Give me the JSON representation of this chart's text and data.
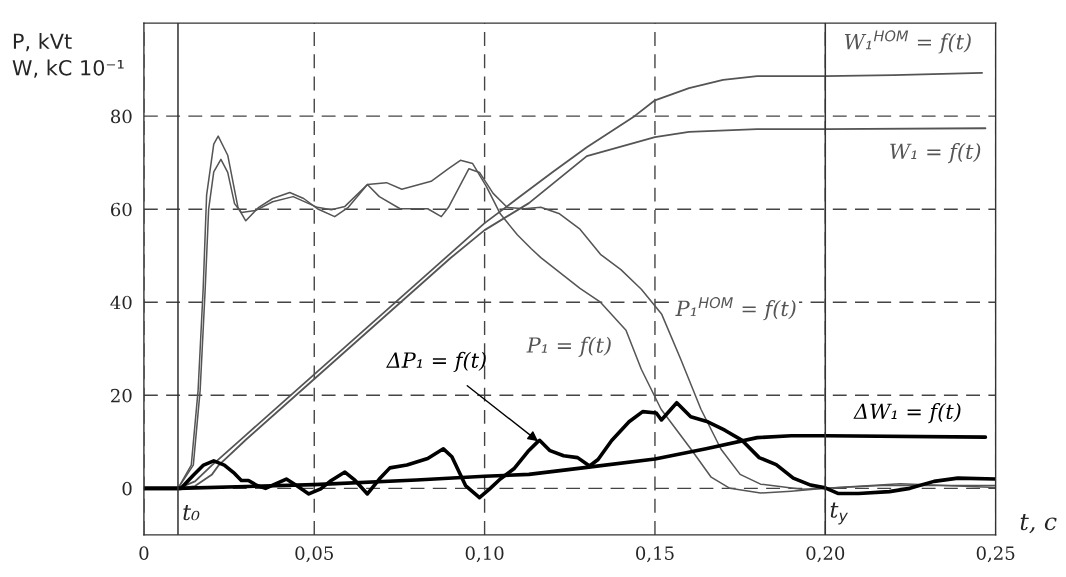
{
  "chart_data": {
    "type": "line",
    "ylabel": "P, kVt\nW, kC 10⁻¹",
    "xlabel": "t, c",
    "xlim": [
      0,
      0.25
    ],
    "ylim": [
      -10,
      100
    ],
    "xticks": [
      {
        "value": 0,
        "label": "0"
      },
      {
        "value": 0.05,
        "label": "0,05"
      },
      {
        "value": 0.1,
        "label": "0,10"
      },
      {
        "value": 0.15,
        "label": "0,15"
      },
      {
        "value": 0.2,
        "label": "0,20"
      },
      {
        "value": 0.25,
        "label": "0,25"
      }
    ],
    "yticks": [
      0,
      20,
      40,
      60,
      80
    ],
    "grid": true,
    "line_style": "solid",
    "marker": "none",
    "ref_lines": [
      {
        "axis": "x",
        "value": 0.01,
        "label": "t₀",
        "color": "#333333",
        "line_style": "solid"
      },
      {
        "axis": "x",
        "value": 0.2,
        "label": "t$_{y}$",
        "color": "#333333",
        "line_style": "solid"
      }
    ],
    "series": [
      {
        "name": "W₁$^{HOM}$ = f(t)",
        "color": "#555555",
        "x": [
          0,
          0.01,
          0.015,
          0.02,
          0.03,
          0.04,
          0.05,
          0.06,
          0.07,
          0.08,
          0.09,
          0.1,
          0.11,
          0.12,
          0.13,
          0.144,
          0.15,
          0.16,
          0.17,
          0.18,
          0.2,
          0.22,
          0.246
        ],
        "values": [
          0,
          0,
          1.5,
          5,
          11.5,
          18,
          24.5,
          31,
          37.5,
          44,
          50.5,
          57,
          62.5,
          68,
          73.3,
          80,
          83.4,
          86,
          87.8,
          88.6,
          88.6,
          88.8,
          89.3
        ]
      },
      {
        "name": "W₁ = f(t)",
        "color": "#555555",
        "x": [
          0.01,
          0.015,
          0.02,
          0.022,
          0.03,
          0.05,
          0.07,
          0.09,
          0.1,
          0.113,
          0.13,
          0.15,
          0.16,
          0.18,
          0.2,
          0.247
        ],
        "values": [
          0,
          0.5,
          3,
          5,
          10.5,
          23.5,
          36.5,
          49.5,
          55.5,
          61.3,
          71.4,
          75.5,
          76.6,
          77.2,
          77.2,
          77.4
        ]
      },
      {
        "name": "P₁$^{HOM}$ = f(t)",
        "color": "#555555",
        "x": [
          0,
          0.01,
          0.0145,
          0.0165,
          0.018,
          0.019,
          0.0205,
          0.0226,
          0.0246,
          0.0266,
          0.0286,
          0.0327,
          0.0378,
          0.0438,
          0.0509,
          0.055,
          0.059,
          0.0656,
          0.0691,
          0.0752,
          0.0833,
          0.0873,
          0.0894,
          0.0954,
          0.0985,
          0.1025,
          0.1066,
          0.1116,
          0.1165,
          0.122,
          0.128,
          0.134,
          0.14,
          0.146,
          0.152,
          0.1576,
          0.1635,
          0.1694,
          0.175,
          0.181,
          0.193,
          0.2,
          0.2165,
          0.25
        ],
        "values": [
          0,
          0,
          5,
          21,
          43,
          60,
          68,
          70.7,
          67.9,
          61.2,
          59.3,
          59.7,
          61.6,
          62.7,
          60.4,
          59.9,
          60.6,
          65.3,
          62.7,
          60.1,
          60.1,
          58.4,
          60.4,
          68.7,
          67.9,
          63.4,
          60.4,
          60.1,
          60.4,
          59,
          55.7,
          50.3,
          47,
          42.8,
          37.4,
          27.7,
          17,
          8.4,
          3,
          0.9,
          -0.2,
          0,
          0.6,
          0.6
        ]
      },
      {
        "name": "P₁ = f(t)",
        "color": "#555555",
        "x": [
          0.01,
          0.0139,
          0.0159,
          0.0174,
          0.0184,
          0.0205,
          0.0218,
          0.0246,
          0.0276,
          0.0299,
          0.0337,
          0.0378,
          0.0428,
          0.0469,
          0.0509,
          0.056,
          0.06,
          0.0656,
          0.0712,
          0.0757,
          0.0843,
          0.0894,
          0.0929,
          0.0965,
          0.1005,
          0.1046,
          0.1096,
          0.1137,
          0.1165,
          0.128,
          0.134,
          0.1415,
          0.146,
          0.1518,
          0.1606,
          0.1665,
          0.172,
          0.181,
          0.19,
          0.2,
          0.222,
          0.25
        ],
        "values": [
          0,
          5,
          21,
          43,
          63,
          74,
          75.7,
          71.6,
          60.4,
          57.5,
          60.4,
          62.3,
          63.6,
          62.3,
          60.1,
          58.4,
          60.4,
          65.3,
          65.7,
          64.3,
          66,
          68.7,
          70.5,
          69.8,
          64.9,
          59,
          54.5,
          51.5,
          49.6,
          43,
          40,
          34,
          25.6,
          17,
          8.4,
          2.4,
          0,
          -1,
          -0.6,
          0,
          1,
          0.2
        ]
      },
      {
        "name": "ΔP₁ = f(t)",
        "color": "#000000",
        "x": [
          0,
          0.0109,
          0.0145,
          0.0175,
          0.0205,
          0.0236,
          0.0266,
          0.0286,
          0.0307,
          0.0332,
          0.0357,
          0.0388,
          0.0418,
          0.0448,
          0.0484,
          0.0519,
          0.055,
          0.059,
          0.062,
          0.0656,
          0.0691,
          0.0722,
          0.0772,
          0.0833,
          0.0879,
          0.0904,
          0.0944,
          0.0985,
          0.1015,
          0.1046,
          0.1086,
          0.1127,
          0.1157,
          0.1162,
          0.1192,
          0.1232,
          0.1273,
          0.1308,
          0.1333,
          0.1373,
          0.1424,
          0.1464,
          0.1504,
          0.1519,
          0.1564,
          0.1605,
          0.1655,
          0.1705,
          0.1756,
          0.1806,
          0.1856,
          0.1906,
          0.1957,
          0.2,
          0.2037,
          0.2098,
          0.2188,
          0.2248,
          0.2319,
          0.2389,
          0.25
        ],
        "values": [
          0,
          0,
          2.8,
          5,
          5.9,
          5,
          3.2,
          1.7,
          1.7,
          0.6,
          0,
          1,
          2,
          0.6,
          -1.2,
          -0.1,
          1.7,
          3.5,
          1.7,
          -1.2,
          2,
          4.4,
          5,
          6.4,
          8.5,
          6.8,
          0.6,
          -2,
          -0.1,
          2,
          4.2,
          7.9,
          10.1,
          10.3,
          8.1,
          7,
          6.6,
          4.8,
          6.2,
          10.3,
          14.3,
          16.5,
          16.2,
          14.7,
          18.4,
          15.4,
          14.3,
          12.5,
          10.3,
          6.6,
          5.1,
          2.2,
          0.7,
          0.1,
          -1.1,
          -1.1,
          -0.7,
          0,
          1.5,
          2.2,
          2
        ]
      },
      {
        "name": "ΔW₁ = f(t)",
        "color": "#000000",
        "x": [
          0,
          0.01,
          0.05,
          0.08,
          0.1,
          0.113,
          0.13,
          0.15,
          0.165,
          0.18,
          0.19,
          0.2,
          0.247
        ],
        "values": [
          0,
          0,
          0.8,
          1.8,
          2.6,
          3,
          4.5,
          6.3,
          8.5,
          10.9,
          11.3,
          11.3,
          11
        ]
      }
    ]
  }
}
